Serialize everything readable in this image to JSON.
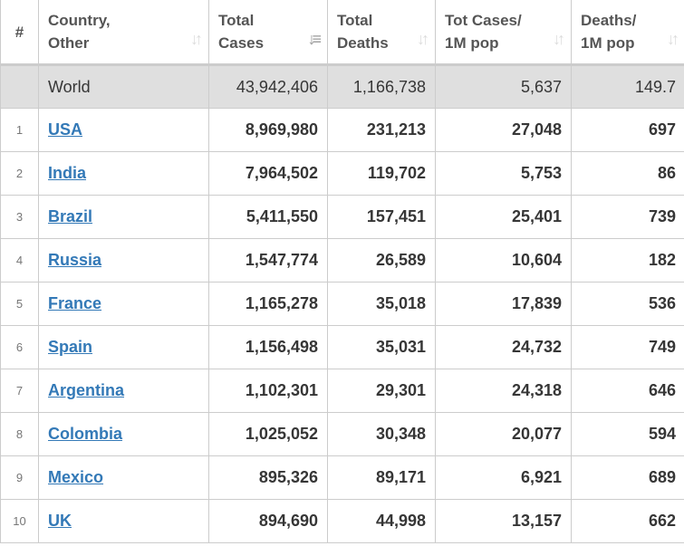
{
  "headers": [
    "#",
    "Country,\nOther",
    "Total\nCases",
    "Total\nDeaths",
    "Tot Cases/\n1M pop",
    "Deaths/\n1M pop"
  ],
  "header_lines": [
    [
      "#"
    ],
    [
      "Country,",
      "Other"
    ],
    [
      "Total",
      "Cases"
    ],
    [
      "Total",
      "Deaths"
    ],
    [
      "Tot Cases/",
      "1M pop"
    ],
    [
      "Deaths/",
      "1M pop"
    ]
  ],
  "world": {
    "name": "World",
    "total_cases": "43,942,406",
    "total_deaths": "1,166,738",
    "cases_per_1m": "5,637",
    "deaths_per_1m": "149.7"
  },
  "rows": [
    {
      "rank": "1",
      "country": "USA",
      "total_cases": "8,969,980",
      "total_deaths": "231,213",
      "cases_per_1m": "27,048",
      "deaths_per_1m": "697"
    },
    {
      "rank": "2",
      "country": "India",
      "total_cases": "7,964,502",
      "total_deaths": "119,702",
      "cases_per_1m": "5,753",
      "deaths_per_1m": "86"
    },
    {
      "rank": "3",
      "country": "Brazil",
      "total_cases": "5,411,550",
      "total_deaths": "157,451",
      "cases_per_1m": "25,401",
      "deaths_per_1m": "739"
    },
    {
      "rank": "4",
      "country": "Russia",
      "total_cases": "1,547,774",
      "total_deaths": "26,589",
      "cases_per_1m": "10,604",
      "deaths_per_1m": "182"
    },
    {
      "rank": "5",
      "country": "France",
      "total_cases": "1,165,278",
      "total_deaths": "35,018",
      "cases_per_1m": "17,839",
      "deaths_per_1m": "536"
    },
    {
      "rank": "6",
      "country": "Spain",
      "total_cases": "1,156,498",
      "total_deaths": "35,031",
      "cases_per_1m": "24,732",
      "deaths_per_1m": "749"
    },
    {
      "rank": "7",
      "country": "Argentina",
      "total_cases": "1,102,301",
      "total_deaths": "29,301",
      "cases_per_1m": "24,318",
      "deaths_per_1m": "646"
    },
    {
      "rank": "8",
      "country": "Colombia",
      "total_cases": "1,025,052",
      "total_deaths": "30,348",
      "cases_per_1m": "20,077",
      "deaths_per_1m": "594"
    },
    {
      "rank": "9",
      "country": "Mexico",
      "total_cases": "895,326",
      "total_deaths": "89,171",
      "cases_per_1m": "6,921",
      "deaths_per_1m": "689"
    },
    {
      "rank": "10",
      "country": "UK",
      "total_cases": "894,690",
      "total_deaths": "44,998",
      "cases_per_1m": "13,157",
      "deaths_per_1m": "662"
    }
  ],
  "sort": {
    "column": "Total Cases",
    "direction": "descending"
  },
  "colors": {
    "link": "#3379b7",
    "world_bg": "#dfdfdf"
  }
}
